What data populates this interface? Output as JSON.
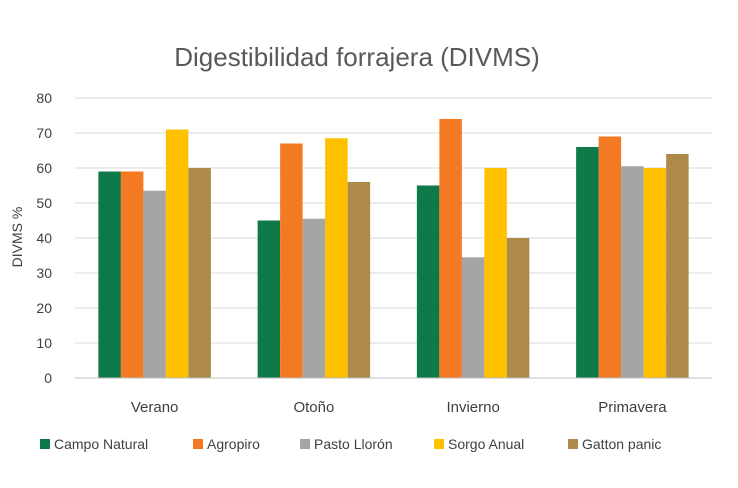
{
  "chart_data": {
    "type": "bar",
    "title": "Digestibilidad forrajera (DIVMS)",
    "xlabel": "",
    "ylabel": "DIVMS %",
    "ylim": [
      0,
      80
    ],
    "yticks": [
      0,
      10,
      20,
      30,
      40,
      50,
      60,
      70,
      80
    ],
    "grid": true,
    "legend": "bottom",
    "categories": [
      "Verano",
      "Otoño",
      "Invierno",
      "Primavera"
    ],
    "series": [
      {
        "name": "Campo Natural",
        "color": "#0E7A4A",
        "values": [
          59,
          45,
          55,
          66
        ]
      },
      {
        "name": "Agropiro",
        "color": "#F37A22",
        "values": [
          59,
          67,
          74,
          69
        ]
      },
      {
        "name": "Pasto Llorón",
        "color": "#A5A5A5",
        "values": [
          53.5,
          45.5,
          34.5,
          60.5
        ]
      },
      {
        "name": "Sorgo Anual",
        "color": "#FFC000",
        "values": [
          71,
          68.5,
          60,
          60
        ]
      },
      {
        "name": "Gatton panic",
        "color": "#AD8A4A",
        "values": [
          60,
          56,
          40,
          64
        ]
      }
    ]
  }
}
